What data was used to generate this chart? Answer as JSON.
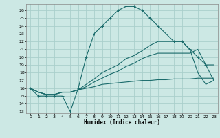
{
  "xlabel": "Humidex (Indice chaleur)",
  "bg_color": "#cce8e4",
  "grid_color": "#aacfcc",
  "line_color": "#1a6b6b",
  "xlim": [
    -0.5,
    23.5
  ],
  "ylim": [
    12.8,
    26.8
  ],
  "xticks": [
    0,
    1,
    2,
    3,
    4,
    5,
    6,
    7,
    8,
    9,
    10,
    11,
    12,
    13,
    14,
    15,
    16,
    17,
    18,
    19,
    20,
    21,
    22,
    23
  ],
  "yticks": [
    13,
    14,
    15,
    16,
    17,
    18,
    19,
    20,
    21,
    22,
    23,
    24,
    25,
    26
  ],
  "curve1_x": [
    0,
    1,
    2,
    3,
    4,
    5,
    6,
    7,
    8,
    9,
    10,
    11,
    12,
    13,
    14,
    15,
    16,
    17,
    18,
    19,
    20,
    21,
    22,
    23
  ],
  "curve1_y": [
    16,
    15,
    15,
    15,
    15,
    13,
    16,
    20,
    23,
    24,
    25,
    26,
    26.5,
    26.5,
    26,
    25,
    24,
    23,
    22,
    22,
    21,
    20,
    19,
    17
  ],
  "curve2_x": [
    0,
    1,
    2,
    3,
    4,
    5,
    6,
    7,
    8,
    9,
    10,
    11,
    12,
    13,
    14,
    15,
    16,
    17,
    18,
    19,
    20,
    21,
    22,
    23
  ],
  "curve2_y": [
    16,
    15.5,
    15.2,
    15.2,
    15.5,
    15.5,
    15.8,
    16.5,
    17.2,
    18,
    18.5,
    19,
    19.8,
    20.2,
    20.8,
    21.5,
    22,
    22,
    22,
    22,
    21,
    18,
    16.5,
    17
  ],
  "curve3_x": [
    0,
    1,
    2,
    3,
    4,
    5,
    6,
    7,
    8,
    9,
    10,
    11,
    12,
    13,
    14,
    15,
    16,
    17,
    18,
    19,
    20,
    21,
    22,
    23
  ],
  "curve3_y": [
    16,
    15.5,
    15.2,
    15.2,
    15.5,
    15.5,
    15.8,
    16.2,
    16.8,
    17.3,
    17.8,
    18.2,
    18.8,
    19.2,
    19.8,
    20.2,
    20.5,
    20.5,
    20.5,
    20.5,
    20.5,
    21,
    19,
    19
  ],
  "curve4_x": [
    0,
    1,
    2,
    3,
    4,
    5,
    6,
    7,
    8,
    9,
    10,
    11,
    12,
    13,
    14,
    15,
    16,
    17,
    18,
    19,
    20,
    21,
    22,
    23
  ],
  "curve4_y": [
    16,
    15.5,
    15.2,
    15.2,
    15.5,
    15.5,
    15.8,
    16.0,
    16.2,
    16.5,
    16.6,
    16.7,
    16.8,
    16.9,
    17.0,
    17.0,
    17.1,
    17.1,
    17.2,
    17.2,
    17.2,
    17.3,
    17.3,
    17.3
  ]
}
